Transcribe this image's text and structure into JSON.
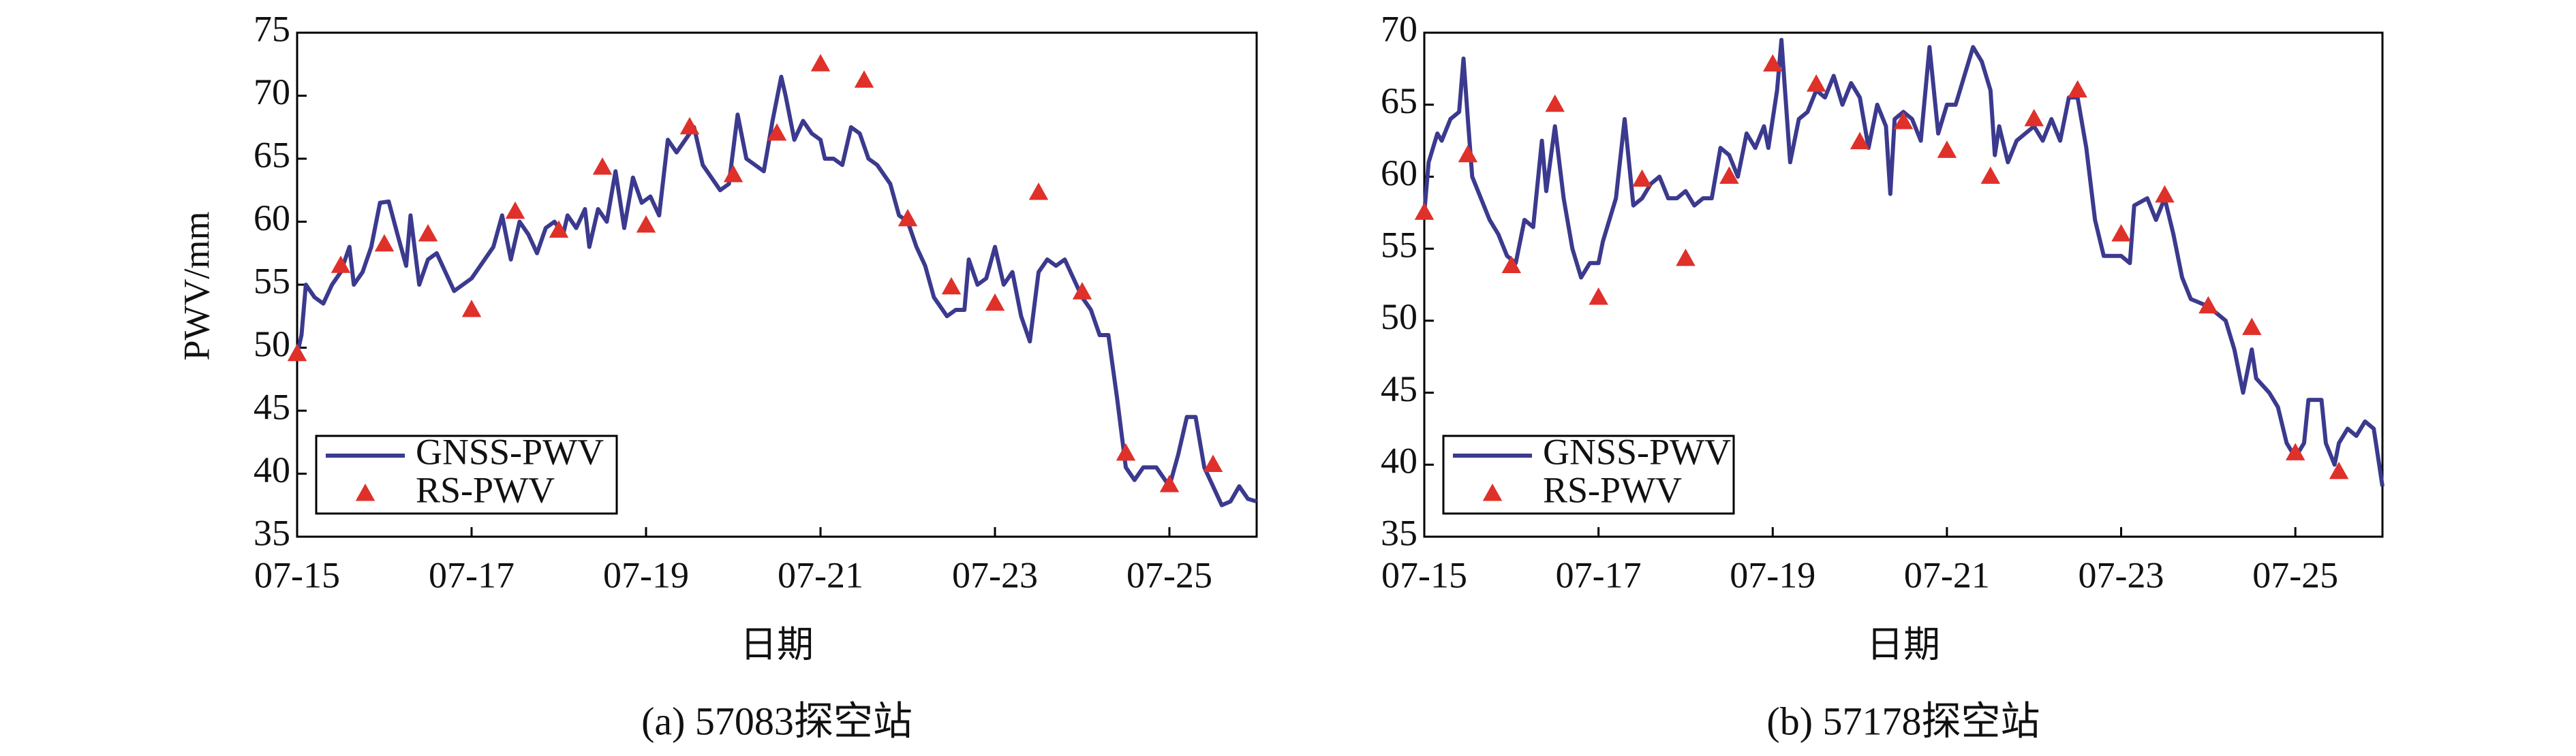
{
  "chart_data": [
    {
      "type": "line",
      "caption": "(a) 57083探空站",
      "xlabel": "日期",
      "ylabel": "PWV/mm",
      "xlim": [
        15,
        26
      ],
      "ylim": [
        35,
        75
      ],
      "xticks": [
        {
          "value": 15,
          "label": "07-15"
        },
        {
          "value": 17,
          "label": "07-17"
        },
        {
          "value": 19,
          "label": "07-19"
        },
        {
          "value": 21,
          "label": "07-21"
        },
        {
          "value": 23,
          "label": "07-23"
        },
        {
          "value": 25,
          "label": "07-25"
        }
      ],
      "yticks": [
        35,
        40,
        45,
        50,
        55,
        60,
        65,
        70,
        75
      ],
      "legend": "lower left",
      "series": [
        {
          "name": "GNSS-PWV",
          "type": "line",
          "color": "#3b3a8e",
          "x": [
            15.0,
            15.05,
            15.1,
            15.2,
            15.3,
            15.4,
            15.5,
            15.6,
            15.65,
            15.75,
            15.85,
            15.95,
            16.05,
            16.15,
            16.25,
            16.3,
            16.4,
            16.5,
            16.6,
            16.7,
            16.8,
            16.9,
            17.0,
            17.15,
            17.25,
            17.35,
            17.45,
            17.55,
            17.65,
            17.75,
            17.85,
            17.95,
            18.05,
            18.1,
            18.2,
            18.3,
            18.35,
            18.45,
            18.55,
            18.65,
            18.75,
            18.85,
            18.95,
            19.05,
            19.15,
            19.25,
            19.35,
            19.45,
            19.55,
            19.65,
            19.75,
            19.85,
            19.95,
            20.05,
            20.15,
            20.25,
            20.35,
            20.45,
            20.55,
            20.6,
            20.7,
            20.8,
            20.9,
            21.0,
            21.05,
            21.15,
            21.25,
            21.35,
            21.45,
            21.55,
            21.65,
            21.8,
            21.9,
            22.0,
            22.1,
            22.2,
            22.3,
            22.45,
            22.55,
            22.65,
            22.7,
            22.8,
            22.9,
            23.0,
            23.1,
            23.2,
            23.3,
            23.4,
            23.5,
            23.6,
            23.7,
            23.8,
            23.9,
            24.0,
            24.1,
            24.2,
            24.3,
            24.4,
            24.5,
            24.6,
            24.7,
            24.85,
            25.0,
            25.1,
            25.2,
            25.3,
            25.4,
            25.5,
            25.6,
            25.7,
            25.8,
            25.9,
            26.0
          ],
          "values": [
            49.5,
            51,
            55,
            54,
            53.5,
            55,
            56,
            58,
            55,
            56,
            58,
            61.5,
            61.6,
            59,
            56.5,
            60.5,
            55,
            57,
            57.5,
            56,
            54.5,
            55,
            55.5,
            57,
            58,
            60.5,
            57,
            60,
            59,
            57.5,
            59.5,
            60,
            59,
            60.5,
            59.5,
            61,
            58,
            61,
            60,
            64,
            59.5,
            63.5,
            61.5,
            62,
            60.5,
            66.5,
            65.5,
            66.5,
            67.5,
            64.5,
            63.5,
            62.5,
            63,
            68.5,
            65,
            64.5,
            64,
            68,
            71.5,
            70,
            66.5,
            68,
            67,
            66.5,
            65,
            65,
            64.5,
            67.5,
            67,
            65,
            64.5,
            63,
            60.5,
            60,
            58,
            56.5,
            54,
            52.5,
            53,
            53,
            57,
            55,
            55.5,
            58,
            55,
            56,
            52.5,
            50.5,
            56,
            57,
            56.5,
            57,
            55.5,
            54,
            53,
            51,
            51,
            46,
            40.5,
            39.5,
            40.5,
            40.5,
            39,
            41.5,
            44.5,
            44.5,
            40.5,
            39,
            37.5,
            37.8,
            39,
            38,
            37.8
          ]
        },
        {
          "name": "RS-PWV",
          "type": "scatter",
          "color": "#e0302a",
          "x": [
            15.0,
            15.5,
            16.0,
            16.5,
            17.0,
            17.5,
            18.0,
            18.5,
            19.0,
            19.5,
            20.0,
            20.5,
            21.0,
            21.5,
            22.0,
            22.5,
            23.0,
            23.5,
            24.0,
            24.5,
            25.0,
            25.5
          ],
          "values": [
            49.5,
            56.5,
            58.2,
            59,
            53,
            60.8,
            59.3,
            64.3,
            59.7,
            67.5,
            63.7,
            67,
            72.5,
            71.2,
            60.2,
            54.8,
            53.5,
            62.3,
            54.4,
            41.6,
            39.1,
            40.7
          ]
        }
      ]
    },
    {
      "type": "line",
      "caption": "(b) 57178探空站",
      "xlabel": "日期",
      "xlim": [
        15,
        26
      ],
      "ylim": [
        35,
        70
      ],
      "xticks": [
        {
          "value": 15,
          "label": "07-15"
        },
        {
          "value": 17,
          "label": "07-17"
        },
        {
          "value": 19,
          "label": "07-19"
        },
        {
          "value": 21,
          "label": "07-21"
        },
        {
          "value": 23,
          "label": "07-23"
        },
        {
          "value": 25,
          "label": "07-25"
        }
      ],
      "yticks": [
        35,
        40,
        45,
        50,
        55,
        60,
        65,
        70
      ],
      "legend": "lower left",
      "series": [
        {
          "name": "GNSS-PWV",
          "type": "line",
          "color": "#3b3a8e",
          "x": [
            15.0,
            15.05,
            15.15,
            15.2,
            15.3,
            15.4,
            15.45,
            15.5,
            15.55,
            15.65,
            15.75,
            15.85,
            15.95,
            16.05,
            16.15,
            16.25,
            16.35,
            16.4,
            16.5,
            16.6,
            16.7,
            16.8,
            16.9,
            17.0,
            17.05,
            17.2,
            17.3,
            17.4,
            17.5,
            17.6,
            17.7,
            17.8,
            17.9,
            18.0,
            18.1,
            18.2,
            18.3,
            18.4,
            18.5,
            18.6,
            18.7,
            18.8,
            18.9,
            18.95,
            19.05,
            19.1,
            19.2,
            19.3,
            19.4,
            19.5,
            19.6,
            19.7,
            19.8,
            19.9,
            20.0,
            20.1,
            20.2,
            20.3,
            20.35,
            20.4,
            20.5,
            20.6,
            20.7,
            20.8,
            20.9,
            21.0,
            21.1,
            21.2,
            21.3,
            21.4,
            21.5,
            21.55,
            21.6,
            21.7,
            21.8,
            21.9,
            22.0,
            22.1,
            22.2,
            22.3,
            22.4,
            22.5,
            22.6,
            22.7,
            22.8,
            22.9,
            23.0,
            23.1,
            23.15,
            23.3,
            23.4,
            23.5,
            23.6,
            23.7,
            23.8,
            24.0,
            24.1,
            24.2,
            24.3,
            24.4,
            24.5,
            24.55,
            24.7,
            24.8,
            24.9,
            25.0,
            25.1,
            25.15,
            25.3,
            25.35,
            25.45,
            25.5,
            25.6,
            25.7,
            25.8,
            25.9,
            26.0
          ],
          "values": [
            57.5,
            61,
            63,
            62.5,
            64,
            64.5,
            68.2,
            64,
            60,
            58.5,
            57,
            56,
            54.5,
            54,
            57,
            56.5,
            62.5,
            59,
            63.5,
            58.5,
            55,
            53,
            54,
            54,
            55.5,
            58.5,
            64,
            58,
            58.5,
            59.5,
            60,
            58.5,
            58.5,
            59,
            58,
            58.5,
            58.5,
            62,
            61.5,
            60,
            63,
            62,
            63.5,
            62,
            66,
            69.5,
            61,
            64,
            64.5,
            66,
            65.5,
            67,
            65,
            66.5,
            65.5,
            62,
            65,
            63.5,
            58.8,
            64,
            64.5,
            64,
            62.5,
            69,
            63,
            65,
            65,
            67,
            69,
            68,
            66,
            61.5,
            63.5,
            61,
            62.5,
            63,
            63.5,
            62.5,
            64,
            62.5,
            65.5,
            65.5,
            62,
            57,
            54.5,
            54.5,
            54.5,
            54,
            58,
            58.5,
            57,
            58.5,
            56,
            53,
            51.5,
            51,
            50.5,
            50,
            48,
            45,
            48,
            46,
            45,
            44,
            41.5,
            40.5,
            41.5,
            44.5,
            44.5,
            41.5,
            40,
            41.5,
            42.5,
            42,
            43,
            42.5,
            38.5
          ]
        },
        {
          "name": "RS-PWV",
          "type": "scatter",
          "color": "#e0302a",
          "x": [
            15.0,
            15.5,
            16.0,
            16.5,
            17.0,
            17.5,
            18.0,
            18.5,
            19.0,
            19.5,
            20.0,
            20.5,
            21.0,
            21.5,
            22.0,
            22.5,
            23.0,
            23.5,
            24.0,
            24.5,
            25.0,
            25.5
          ],
          "values": [
            57.5,
            61.5,
            53.8,
            65,
            51.6,
            59.8,
            54.3,
            60,
            67.8,
            66.4,
            62.4,
            63.8,
            61.8,
            60,
            64,
            66,
            56,
            58.7,
            51,
            49.5,
            40.8,
            39.5
          ]
        }
      ]
    }
  ]
}
